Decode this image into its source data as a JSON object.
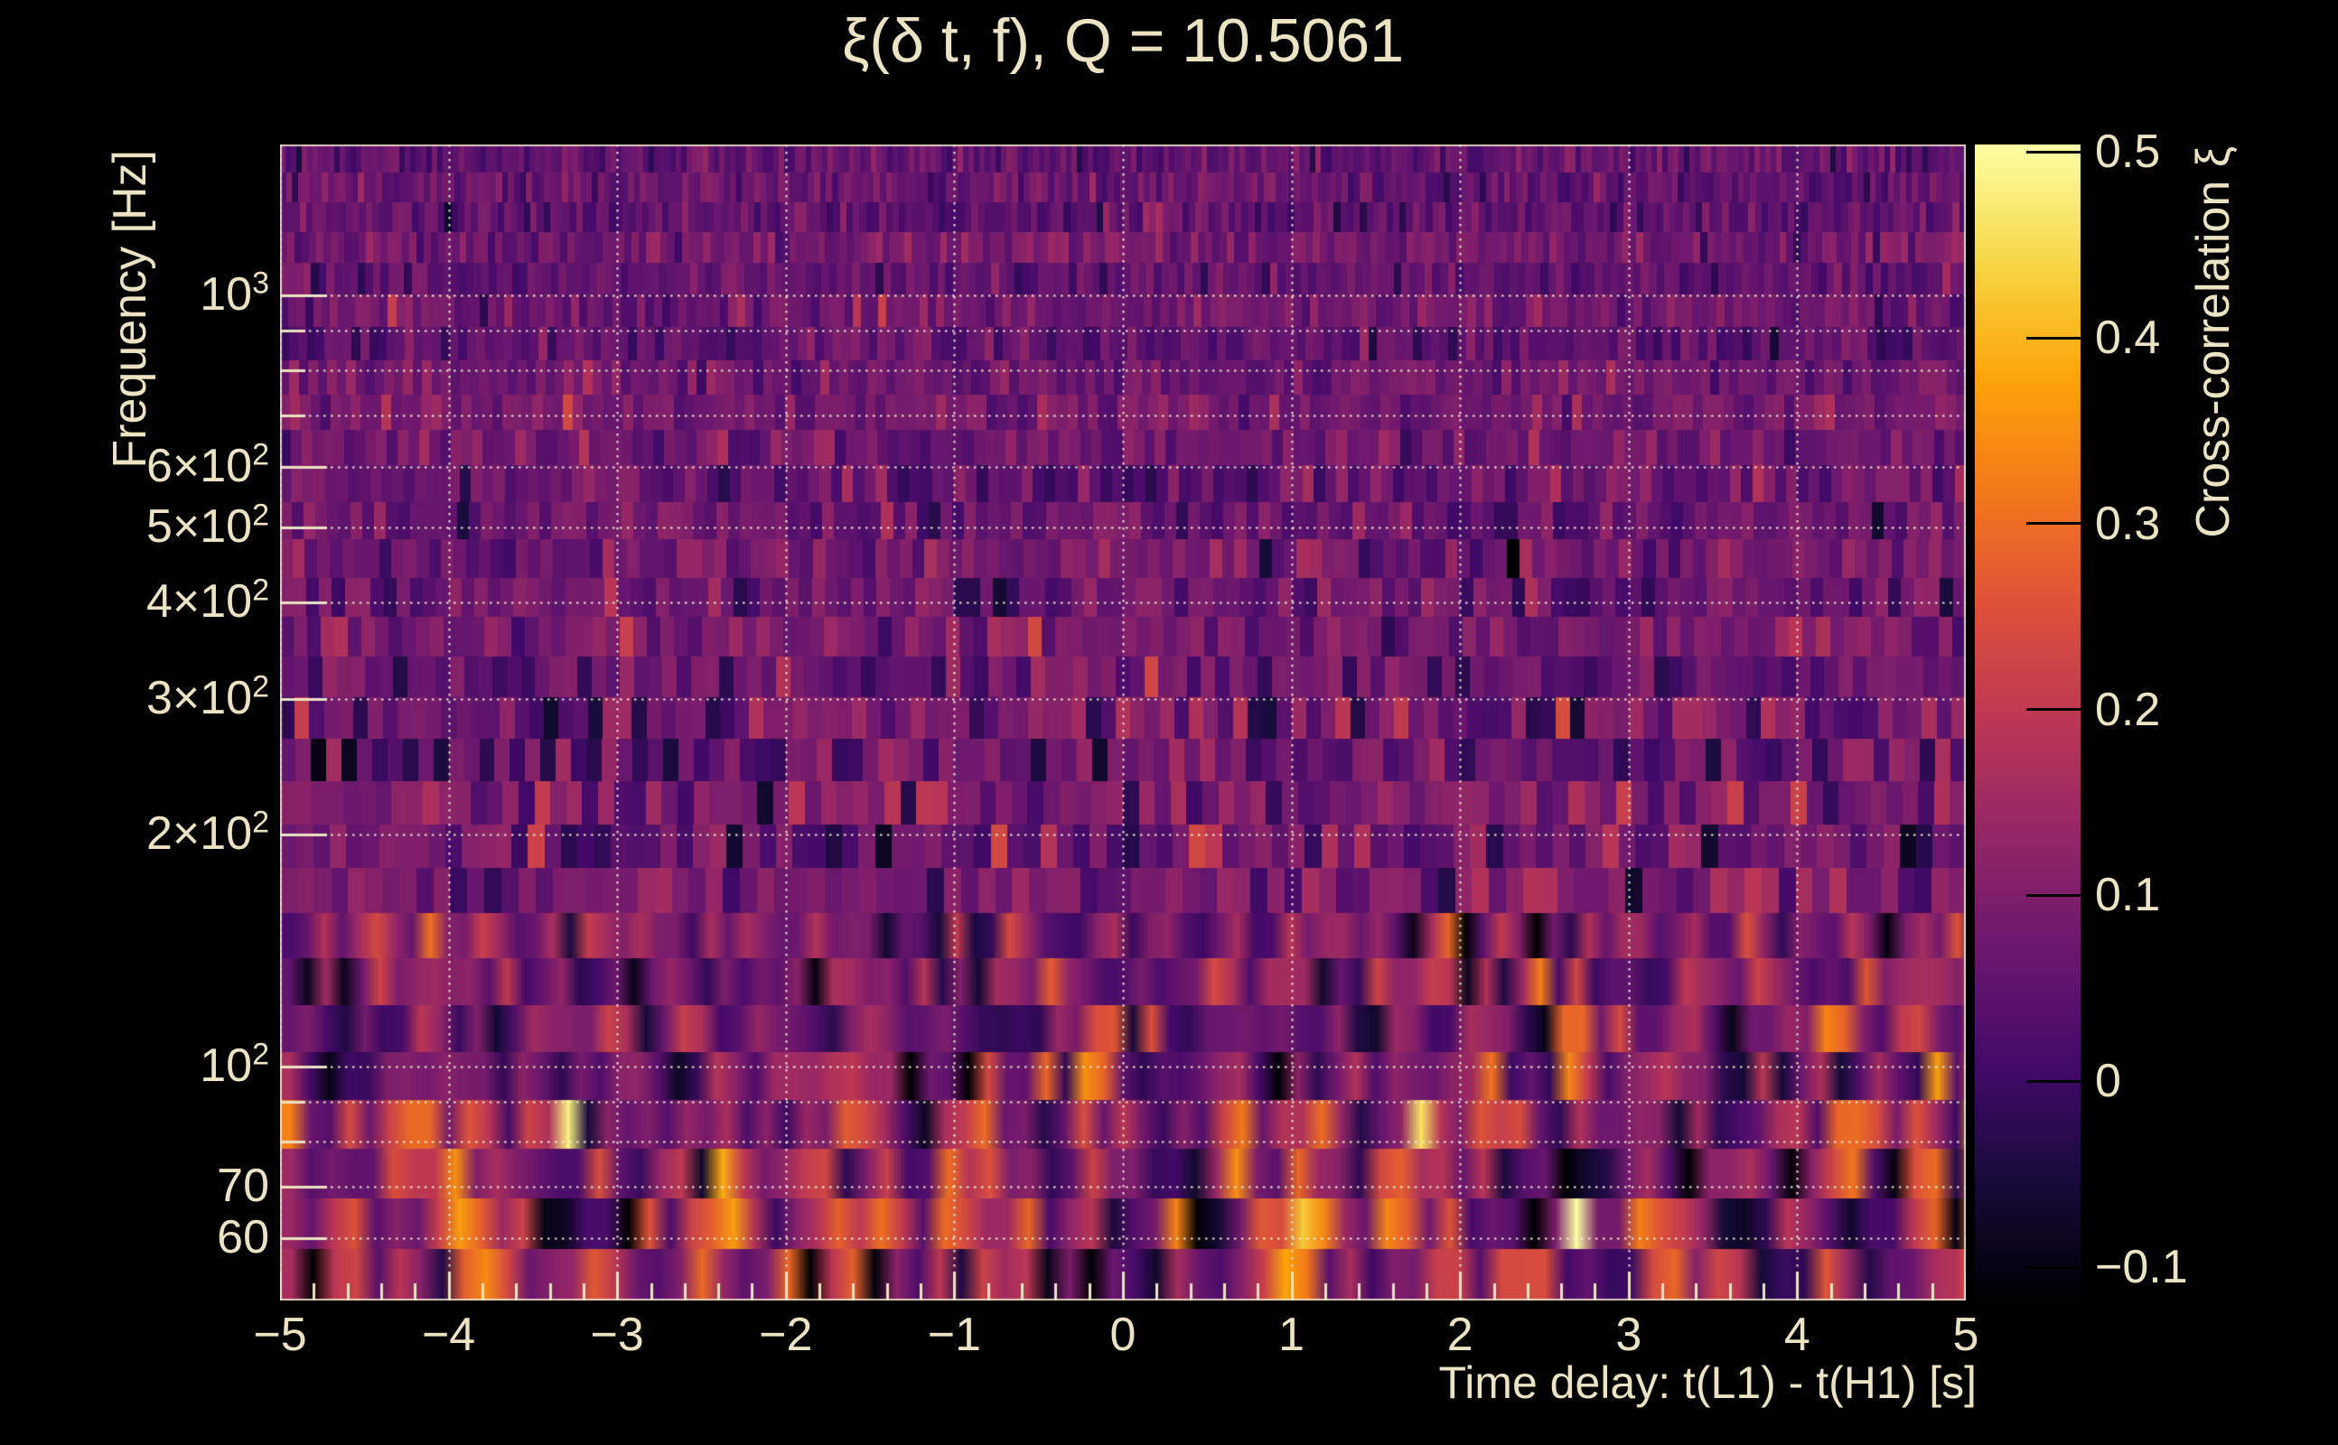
{
  "background": "#000000",
  "text_color": "#ece3c3",
  "grid_color": "rgba(248,241,220,0.95)",
  "axis_color": "#ece3c3",
  "chart_data": {
    "type": "heatmap",
    "title": "ξ(δ t, f), Q = 10.5061",
    "xlabel": "Time delay: t(L1) - t(H1) [s]",
    "ylabel": "Frequency [Hz]",
    "zlabel": "Cross-correlation ξ",
    "x_range": [
      -5,
      5
    ],
    "y_range_hz": [
      49.8,
      1570
    ],
    "y_scale": "log",
    "z_range": [
      -0.117,
      0.504
    ],
    "grid": true,
    "x_major_ticks": [
      {
        "v": -5,
        "label": "−5"
      },
      {
        "v": -4,
        "label": "−4"
      },
      {
        "v": -3,
        "label": "−3"
      },
      {
        "v": -2,
        "label": "−2"
      },
      {
        "v": -1,
        "label": "−1"
      },
      {
        "v": 0,
        "label": "0"
      },
      {
        "v": 1,
        "label": "1"
      },
      {
        "v": 2,
        "label": "2"
      },
      {
        "v": 3,
        "label": "3"
      },
      {
        "v": 4,
        "label": "4"
      },
      {
        "v": 5,
        "label": "5"
      }
    ],
    "x_minor_step": 0.2,
    "y_ticks": [
      {
        "f": 1000,
        "main": "10",
        "sup": "3"
      },
      {
        "f": 600,
        "main": "6×10",
        "sup": "2"
      },
      {
        "f": 500,
        "main": "5×10",
        "sup": "2"
      },
      {
        "f": 400,
        "main": "4×10",
        "sup": "2"
      },
      {
        "f": 300,
        "main": "3×10",
        "sup": "2"
      },
      {
        "f": 200,
        "main": "2×10",
        "sup": "2"
      },
      {
        "f": 100,
        "main": "10",
        "sup": "2"
      },
      {
        "f": 70,
        "main": "70",
        "sup": ""
      },
      {
        "f": 60,
        "main": "60",
        "sup": ""
      }
    ],
    "y_minor_tick_hz": [
      900,
      800,
      700,
      90,
      80
    ],
    "y_gridlines_hz": [
      60,
      70,
      80,
      90,
      100,
      200,
      300,
      400,
      500,
      600,
      700,
      800,
      900,
      1000
    ],
    "colorbar_ticks": [
      {
        "v": 0.5,
        "label": "0.5"
      },
      {
        "v": 0.4,
        "label": "0.4"
      },
      {
        "v": 0.3,
        "label": "0.3"
      },
      {
        "v": 0.2,
        "label": "0.2"
      },
      {
        "v": 0.1,
        "label": "0.1"
      },
      {
        "v": 0,
        "label": "0"
      },
      {
        "v": -0.1,
        "label": "−0.1"
      }
    ],
    "palette_inferno": [
      [
        0.0,
        "#000004"
      ],
      [
        0.1,
        "#160b39"
      ],
      [
        0.2,
        "#420a68"
      ],
      [
        0.3,
        "#6a176e"
      ],
      [
        0.4,
        "#932667"
      ],
      [
        0.5,
        "#bc3754"
      ],
      [
        0.6,
        "#dd513a"
      ],
      [
        0.7,
        "#f37819"
      ],
      [
        0.8,
        "#fca50a"
      ],
      [
        0.9,
        "#f6d746"
      ],
      [
        1.0,
        "#fcffa4"
      ]
    ],
    "generation": {
      "seed": 20250514,
      "n_rows": 29,
      "row_height_top": 31,
      "row_height_bottom": 56,
      "cell_w_top": 6,
      "cell_w_bottom": 24,
      "streak_len": 420,
      "streak_persist": 0.52,
      "bands": [
        {
          "f_min": 700,
          "f_max": 1600,
          "mean": 0.065,
          "sd": 0.042,
          "streak": 0.3,
          "burst_p": 0.004,
          "burst_amp": 0.1
        },
        {
          "f_min": 300,
          "f_max": 700,
          "mean": 0.072,
          "sd": 0.05,
          "streak": 0.45,
          "burst_p": 0.006,
          "burst_amp": 0.12
        },
        {
          "f_min": 150,
          "f_max": 300,
          "mean": 0.08,
          "sd": 0.06,
          "streak": 0.7,
          "burst_p": 0.012,
          "burst_amp": 0.15
        },
        {
          "f_min": 95,
          "f_max": 150,
          "mean": 0.085,
          "sd": 0.072,
          "streak": 0.95,
          "burst_p": 0.02,
          "burst_amp": 0.18
        },
        {
          "f_min": 63,
          "f_max": 95,
          "mean": 0.088,
          "sd": 0.082,
          "streak": 1.15,
          "burst_p": 0.03,
          "burst_amp": 0.2
        },
        {
          "f_min": 40,
          "f_max": 63,
          "mean": 0.082,
          "sd": 0.092,
          "streak": 1.25,
          "burst_p": 0.035,
          "burst_amp": 0.22
        }
      ],
      "hotspots": [
        {
          "t": 1.02,
          "f_lo": 50,
          "f_hi": 61,
          "xi": 0.5,
          "w": 0.07
        },
        {
          "t": 1.02,
          "f_lo": 61,
          "f_hi": 78,
          "xi": 0.3,
          "w": 0.07
        },
        {
          "t": 1.02,
          "f_lo": 44,
          "f_hi": 50,
          "xi": 0.34,
          "w": 0.08
        },
        {
          "t": 0.67,
          "f_lo": 68,
          "f_hi": 82,
          "xi": 0.33,
          "w": 0.09
        },
        {
          "t": 0.3,
          "f_lo": 59,
          "f_hi": 66,
          "xi": 0.3,
          "w": 0.08
        },
        {
          "t": -0.11,
          "f_lo": 98,
          "f_hi": 112,
          "xi": 0.3,
          "w": 0.08
        },
        {
          "t": -1.02,
          "f_lo": 66,
          "f_hi": 74,
          "xi": 0.32,
          "w": 0.09
        },
        {
          "t": -0.84,
          "f_lo": 74,
          "f_hi": 81,
          "xi": 0.28,
          "w": 0.07
        },
        {
          "t": -1.64,
          "f_lo": 54,
          "f_hi": 59,
          "xi": 0.3,
          "w": 0.08
        },
        {
          "t": -1.98,
          "f_lo": 50,
          "f_hi": 54,
          "xi": 0.3,
          "w": 0.07
        },
        {
          "t": -2.35,
          "f_lo": 66,
          "f_hi": 74,
          "xi": 0.38,
          "w": 0.08
        },
        {
          "t": -2.49,
          "f_lo": 58,
          "f_hi": 65,
          "xi": 0.3,
          "w": 0.08
        },
        {
          "t": -3.85,
          "f_lo": 58,
          "f_hi": 66,
          "xi": 0.32,
          "w": 0.1
        },
        {
          "t": -4.29,
          "f_lo": 73,
          "f_hi": 81,
          "xi": 0.3,
          "w": 0.08
        },
        {
          "t": -4.62,
          "f_lo": 55,
          "f_hi": 62,
          "xi": 0.28,
          "w": 0.08
        },
        {
          "t": 1.66,
          "f_lo": 66,
          "f_hi": 73,
          "xi": 0.3,
          "w": 0.08
        },
        {
          "t": 1.92,
          "f_lo": 52,
          "f_hi": 62,
          "xi": 0.26,
          "w": 0.08
        },
        {
          "t": 2.17,
          "f_lo": 87,
          "f_hi": 98,
          "xi": 0.3,
          "w": 0.08
        },
        {
          "t": 2.44,
          "f_lo": 50,
          "f_hi": 54,
          "xi": 0.3,
          "w": 0.09
        },
        {
          "t": 2.67,
          "f_lo": 96,
          "f_hi": 112,
          "xi": 0.34,
          "w": 0.09
        },
        {
          "t": 3.23,
          "f_lo": 52,
          "f_hi": 67,
          "xi": 0.33,
          "w": 0.09
        },
        {
          "t": 3.58,
          "f_lo": 50,
          "f_hi": 54,
          "xi": 0.28,
          "w": 0.08
        },
        {
          "t": 4.3,
          "f_lo": 72,
          "f_hi": 89,
          "xi": 0.32,
          "w": 0.1
        },
        {
          "t": 4.78,
          "f_lo": 60,
          "f_hi": 73,
          "xi": 0.32,
          "w": 0.09
        }
      ]
    }
  }
}
